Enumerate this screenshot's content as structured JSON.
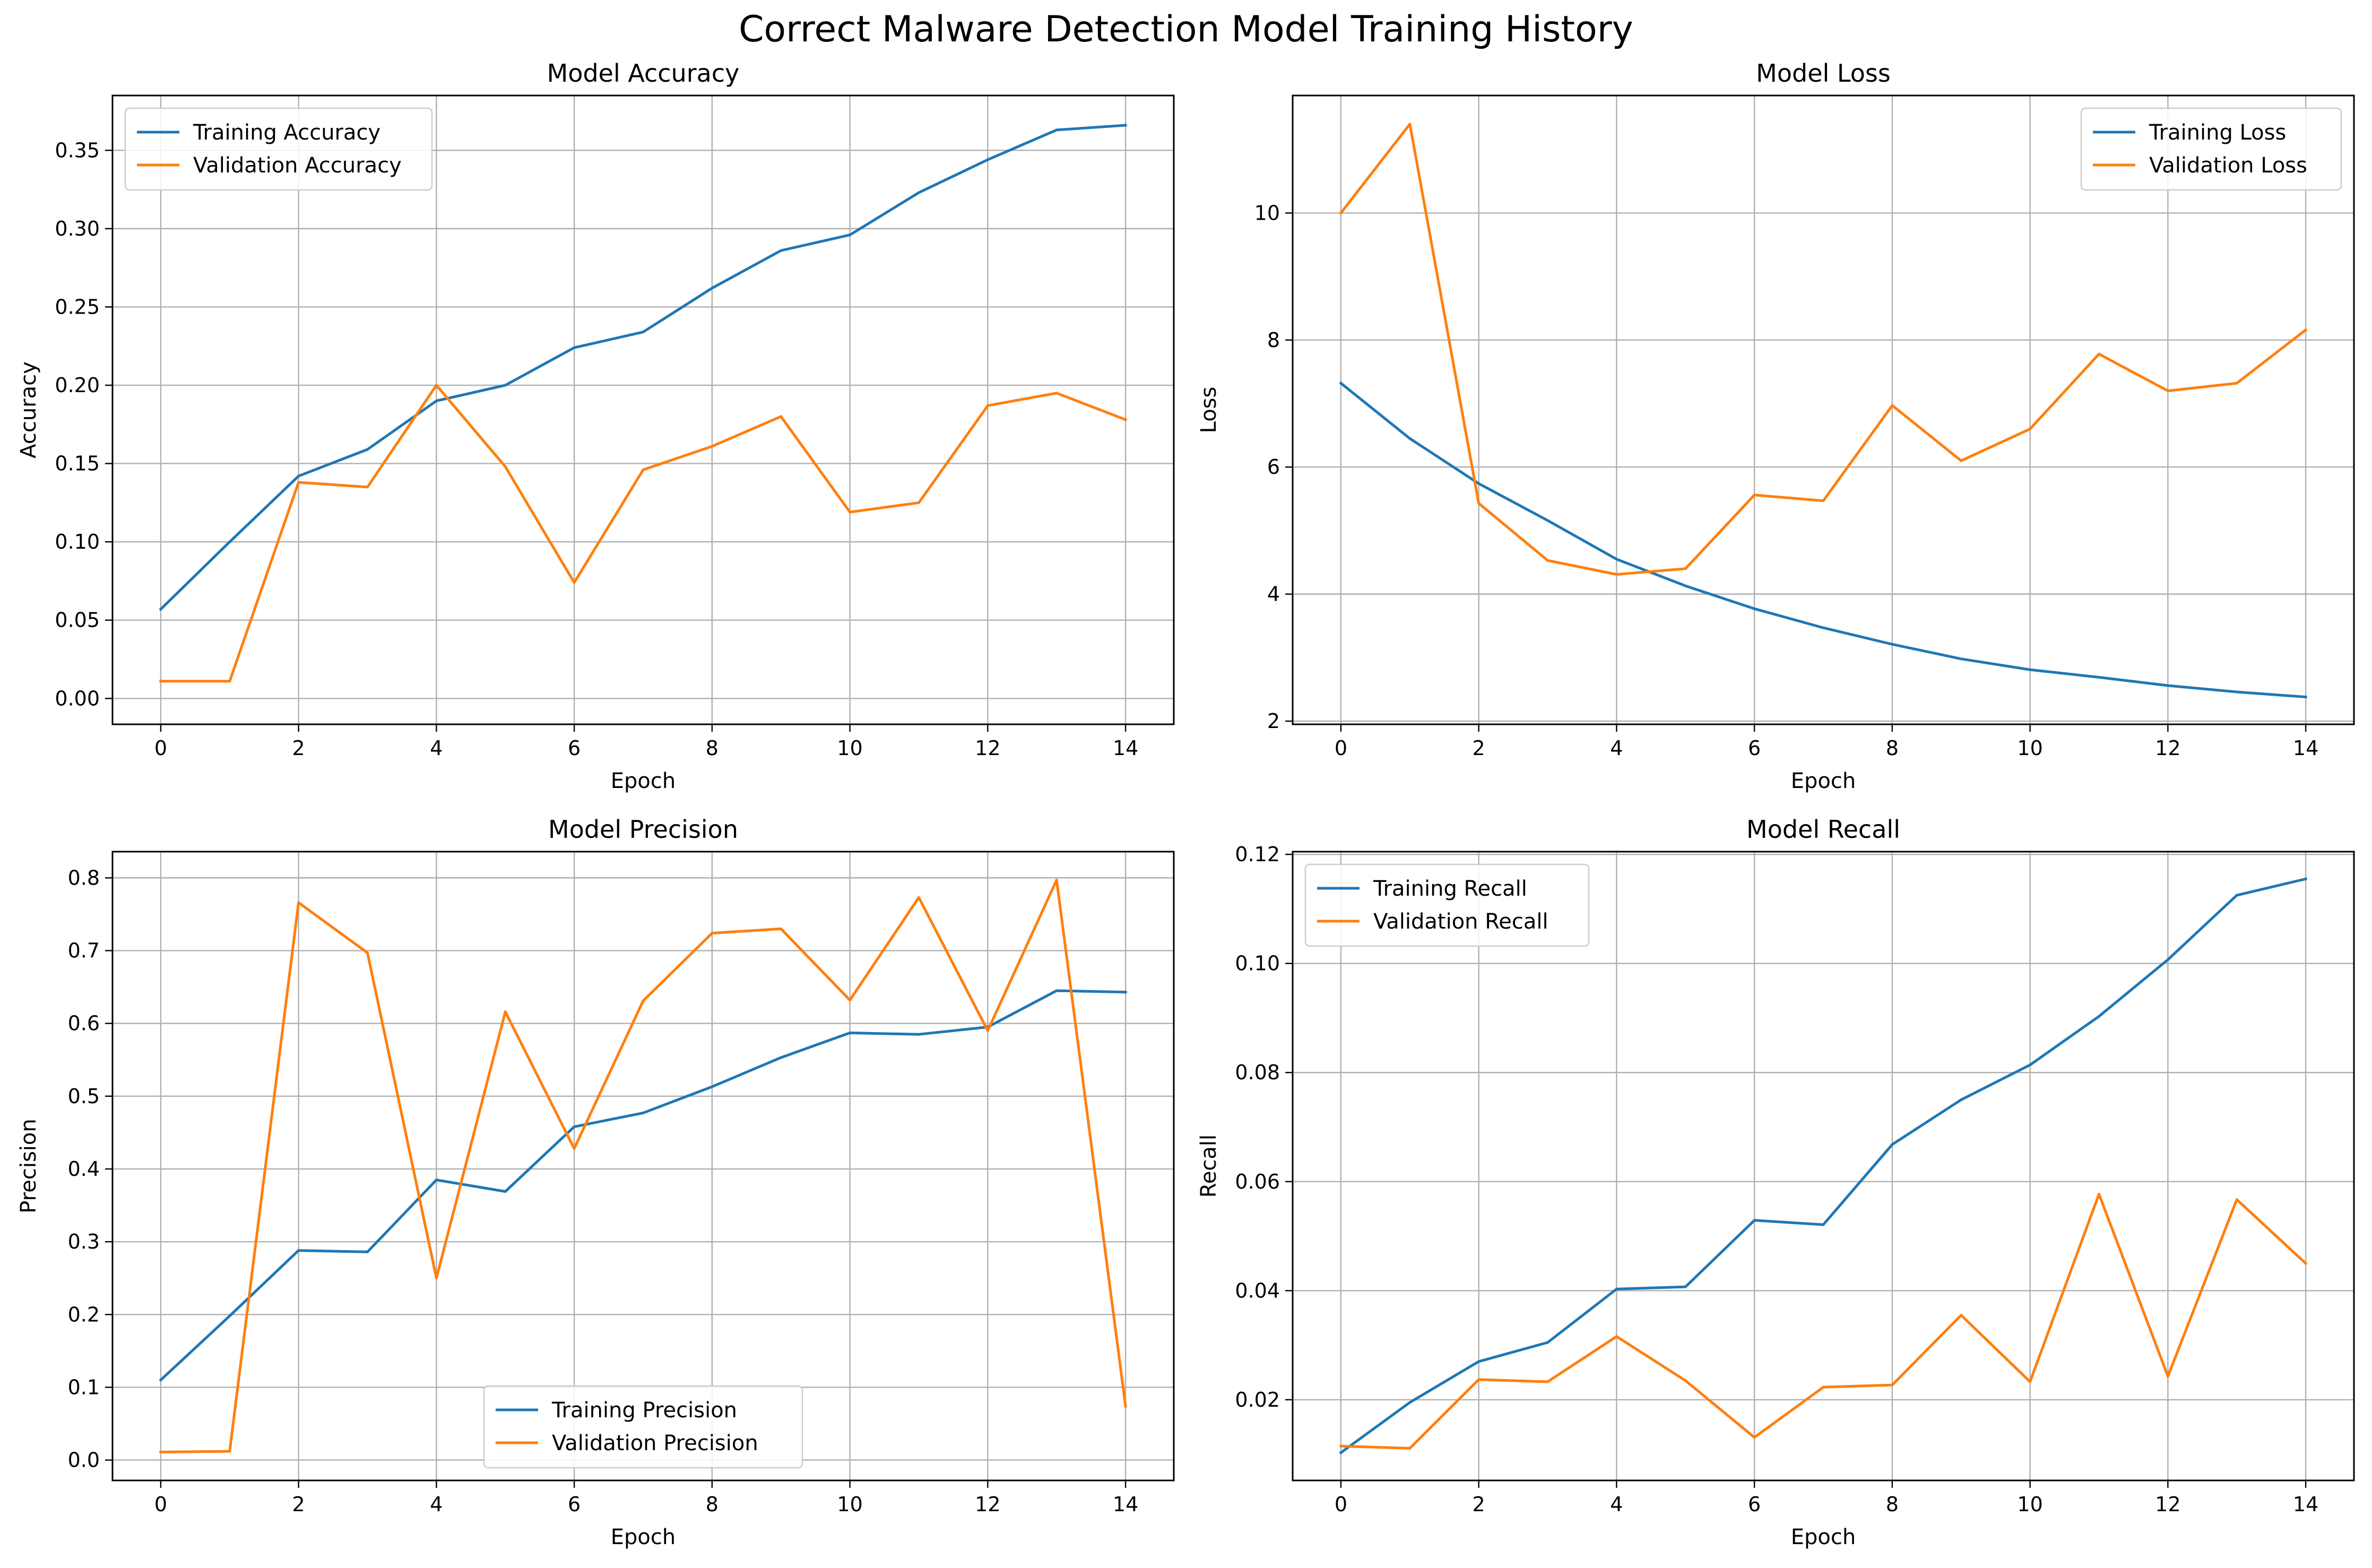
{
  "figure": {
    "suptitle": "Correct Malware Detection Model Training History",
    "colors": {
      "training": "#1f77b4",
      "validation": "#ff7f0e",
      "grid": "#b0b0b0"
    }
  },
  "chart_data": [
    {
      "id": "accuracy",
      "type": "line",
      "title": "Model Accuracy",
      "xlabel": "Epoch",
      "ylabel": "Accuracy",
      "xlim": [
        -0.7,
        14.7
      ],
      "ylim": [
        -0.0165,
        0.385
      ],
      "xticks": [
        0,
        2,
        4,
        6,
        8,
        10,
        12,
        14
      ],
      "yticks": [
        0.0,
        0.05,
        0.1,
        0.15,
        0.2,
        0.25,
        0.3,
        0.35
      ],
      "ytick_labels": [
        "0.00",
        "0.05",
        "0.10",
        "0.15",
        "0.20",
        "0.25",
        "0.30",
        "0.35"
      ],
      "grid": true,
      "legend_position": "upper-left",
      "x": [
        0,
        1,
        2,
        3,
        4,
        5,
        6,
        7,
        8,
        9,
        10,
        11,
        12,
        13,
        14
      ],
      "series": [
        {
          "name": "Training Accuracy",
          "color": "#1f77b4",
          "values": [
            0.057,
            0.1,
            0.142,
            0.159,
            0.19,
            0.2,
            0.224,
            0.234,
            0.262,
            0.286,
            0.296,
            0.323,
            0.344,
            0.363,
            0.366
          ]
        },
        {
          "name": "Validation Accuracy",
          "color": "#ff7f0e",
          "values": [
            0.011,
            0.011,
            0.138,
            0.135,
            0.2,
            0.148,
            0.074,
            0.146,
            0.161,
            0.18,
            0.119,
            0.125,
            0.187,
            0.195,
            0.178
          ]
        }
      ]
    },
    {
      "id": "loss",
      "type": "line",
      "title": "Model Loss",
      "xlabel": "Epoch",
      "ylabel": "Loss",
      "xlim": [
        -0.7,
        14.7
      ],
      "ylim": [
        1.95,
        11.85
      ],
      "xticks": [
        0,
        2,
        4,
        6,
        8,
        10,
        12,
        14
      ],
      "yticks": [
        2,
        4,
        6,
        8,
        10
      ],
      "ytick_labels": [
        "2",
        "4",
        "6",
        "8",
        "10"
      ],
      "grid": true,
      "legend_position": "upper-right",
      "x": [
        0,
        1,
        2,
        3,
        4,
        5,
        6,
        7,
        8,
        9,
        10,
        11,
        12,
        13,
        14
      ],
      "series": [
        {
          "name": "Training Loss",
          "color": "#1f77b4",
          "values": [
            7.32,
            6.45,
            5.74,
            5.16,
            4.55,
            4.13,
            3.77,
            3.47,
            3.21,
            2.98,
            2.81,
            2.69,
            2.56,
            2.46,
            2.38
          ]
        },
        {
          "name": "Validation Loss",
          "color": "#ff7f0e",
          "values": [
            10.0,
            11.4,
            5.43,
            4.53,
            4.31,
            4.4,
            5.56,
            5.47,
            6.97,
            6.1,
            6.6,
            7.78,
            7.2,
            7.32,
            8.16
          ]
        }
      ]
    },
    {
      "id": "precision",
      "type": "line",
      "title": "Model Precision",
      "xlabel": "Epoch",
      "ylabel": "Precision",
      "xlim": [
        -0.7,
        14.7
      ],
      "ylim": [
        -0.028,
        0.836
      ],
      "xticks": [
        0,
        2,
        4,
        6,
        8,
        10,
        12,
        14
      ],
      "yticks": [
        0.0,
        0.1,
        0.2,
        0.3,
        0.4,
        0.5,
        0.6,
        0.7,
        0.8
      ],
      "ytick_labels": [
        "0.0",
        "0.1",
        "0.2",
        "0.3",
        "0.4",
        "0.5",
        "0.6",
        "0.7",
        "0.8"
      ],
      "grid": true,
      "legend_position": "lower-center",
      "x": [
        0,
        1,
        2,
        3,
        4,
        5,
        6,
        7,
        8,
        9,
        10,
        11,
        12,
        13,
        14
      ],
      "series": [
        {
          "name": "Training Precision",
          "color": "#1f77b4",
          "values": [
            0.11,
            0.198,
            0.288,
            0.286,
            0.385,
            0.369,
            0.458,
            0.477,
            0.513,
            0.553,
            0.587,
            0.585,
            0.595,
            0.645,
            0.643
          ]
        },
        {
          "name": "Validation Precision",
          "color": "#ff7f0e",
          "values": [
            0.011,
            0.012,
            0.766,
            0.697,
            0.25,
            0.616,
            0.428,
            0.631,
            0.724,
            0.73,
            0.632,
            0.773,
            0.59,
            0.797,
            0.074
          ]
        }
      ]
    },
    {
      "id": "recall",
      "type": "line",
      "title": "Model Recall",
      "xlabel": "Epoch",
      "ylabel": "Recall",
      "xlim": [
        -0.7,
        14.7
      ],
      "ylim": [
        0.0052,
        0.1205
      ],
      "xticks": [
        0,
        2,
        4,
        6,
        8,
        10,
        12,
        14
      ],
      "yticks": [
        0.02,
        0.04,
        0.06,
        0.08,
        0.1,
        0.12
      ],
      "ytick_labels": [
        "0.02",
        "0.04",
        "0.06",
        "0.08",
        "0.10",
        "0.12"
      ],
      "grid": true,
      "legend_position": "upper-left",
      "x": [
        0,
        1,
        2,
        3,
        4,
        5,
        6,
        7,
        8,
        9,
        10,
        11,
        12,
        13,
        14
      ],
      "series": [
        {
          "name": "Training Recall",
          "color": "#1f77b4",
          "values": [
            0.0103,
            0.0195,
            0.027,
            0.0305,
            0.0403,
            0.0407,
            0.0529,
            0.0521,
            0.0668,
            0.075,
            0.0814,
            0.0903,
            0.1007,
            0.1125,
            0.1155
          ]
        },
        {
          "name": "Validation Recall",
          "color": "#ff7f0e",
          "values": [
            0.0115,
            0.0111,
            0.0237,
            0.0233,
            0.0316,
            0.0235,
            0.0131,
            0.0223,
            0.0227,
            0.0355,
            0.0233,
            0.0577,
            0.0243,
            0.0567,
            0.045
          ]
        }
      ]
    }
  ]
}
